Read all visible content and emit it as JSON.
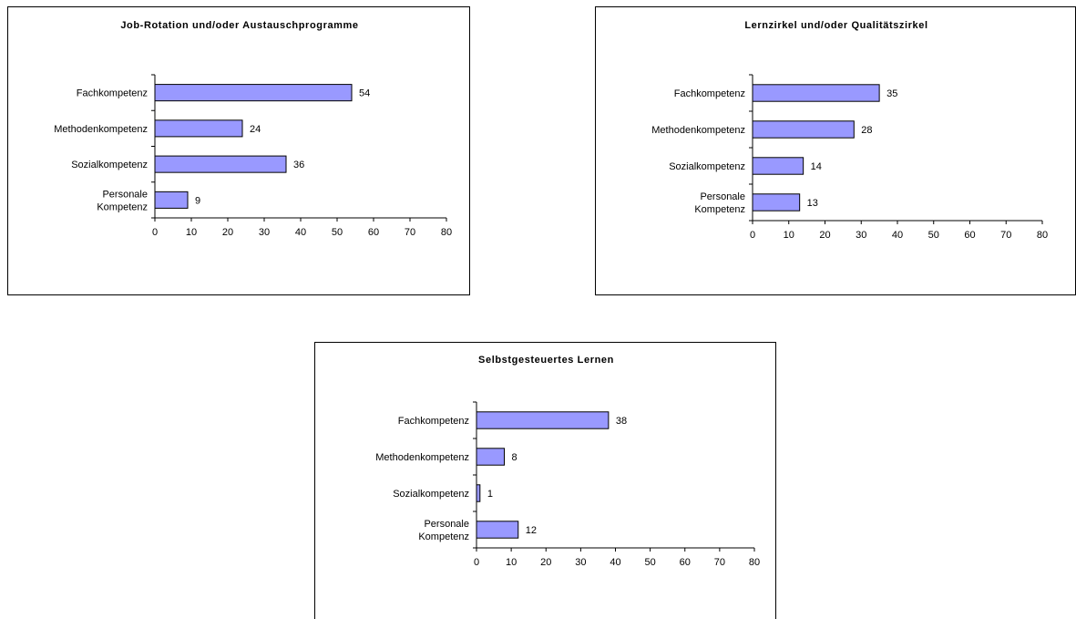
{
  "chart_data": [
    {
      "type": "bar",
      "orientation": "horizontal",
      "title": "Job-Rotation und/oder Austauschprogramme",
      "categories": [
        "Fachkompetenz",
        "Methodenkompetenz",
        "Sozialkompetenz",
        "Personale Kompetenz"
      ],
      "values": [
        54,
        24,
        36,
        9
      ],
      "xlim": [
        0,
        80
      ],
      "xticks": [
        0,
        10,
        20,
        30,
        40,
        50,
        60,
        70,
        80
      ],
      "bar_color": "#9999ff",
      "data_labels": true,
      "grid": false,
      "legend": "none"
    },
    {
      "type": "bar",
      "orientation": "horizontal",
      "title": "Lernzirkel und/oder Qualitätszirkel",
      "categories": [
        "Fachkompetenz",
        "Methodenkompetenz",
        "Sozialkompetenz",
        "Personale Kompetenz"
      ],
      "values": [
        35,
        28,
        14,
        13
      ],
      "xlim": [
        0,
        80
      ],
      "xticks": [
        0,
        10,
        20,
        30,
        40,
        50,
        60,
        70,
        80
      ],
      "bar_color": "#9999ff",
      "data_labels": true,
      "grid": false,
      "legend": "none"
    },
    {
      "type": "bar",
      "orientation": "horizontal",
      "title": "Selbstgesteuertes Lernen",
      "categories": [
        "Fachkompetenz",
        "Methodenkompetenz",
        "Sozialkompetenz",
        "Personale Kompetenz"
      ],
      "values": [
        38,
        8,
        1,
        12
      ],
      "xlim": [
        0,
        80
      ],
      "xticks": [
        0,
        10,
        20,
        30,
        40,
        50,
        60,
        70,
        80
      ],
      "bar_color": "#9999ff",
      "data_labels": true,
      "grid": false,
      "legend": "none"
    }
  ]
}
